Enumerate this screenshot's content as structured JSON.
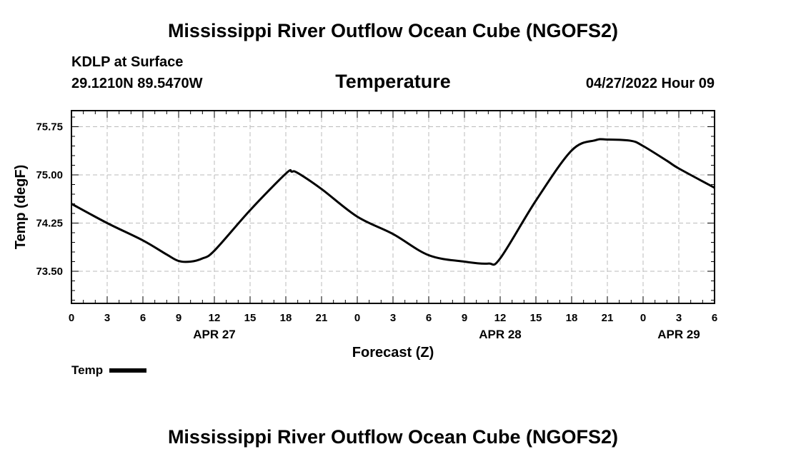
{
  "header": {
    "title": "Mississippi River Outflow Ocean Cube (NGOFS2)",
    "station": "KDLP at Surface",
    "coords": "29.1210N  89.5470W",
    "variable": "Temperature",
    "datetime": "04/27/2022 Hour 09"
  },
  "footer": {
    "title": "Mississippi River Outflow Ocean Cube (NGOFS2)"
  },
  "legend": {
    "label": "Temp",
    "color": "#000000"
  },
  "chart_data": {
    "type": "line",
    "title": "Temperature",
    "xlabel": "Forecast (Z)",
    "ylabel": "Temp (degF)",
    "xlim": [
      0,
      54
    ],
    "ylim": [
      73.0,
      76.0
    ],
    "x_tick_values": [
      0,
      3,
      6,
      9,
      12,
      15,
      18,
      21,
      24,
      27,
      30,
      33,
      36,
      39,
      42,
      45,
      48,
      51,
      54
    ],
    "x_tick_labels": [
      "0",
      "3",
      "6",
      "9",
      "12",
      "15",
      "18",
      "21",
      "0",
      "3",
      "6",
      "9",
      "12",
      "15",
      "18",
      "21",
      "0",
      "3",
      "6"
    ],
    "date_labels": [
      {
        "label": "APR 27",
        "x": 12
      },
      {
        "label": "APR 28",
        "x": 36
      },
      {
        "label": "APR 29",
        "x": 51
      }
    ],
    "y_tick_values": [
      73.5,
      74.25,
      75.0,
      75.75
    ],
    "y_tick_labels": [
      "73.50",
      "74.25",
      "75.00",
      "75.75"
    ],
    "y_minor_step": 0.15,
    "grid": true,
    "series": [
      {
        "name": "Temp",
        "color": "#000000",
        "x": [
          0,
          3,
          6,
          8,
          9,
          10,
          11,
          12,
          15,
          18,
          18.5,
          19,
          21,
          24,
          27,
          30,
          33,
          35,
          36,
          39,
          42,
          44,
          45,
          47,
          48,
          50,
          51,
          54
        ],
        "y": [
          74.55,
          74.25,
          73.98,
          73.76,
          73.66,
          73.65,
          73.7,
          73.82,
          74.45,
          75.02,
          75.05,
          75.03,
          74.78,
          74.35,
          74.08,
          73.75,
          73.65,
          73.62,
          73.7,
          74.6,
          75.38,
          75.54,
          75.55,
          75.53,
          75.45,
          75.22,
          75.1,
          74.8
        ]
      }
    ]
  }
}
